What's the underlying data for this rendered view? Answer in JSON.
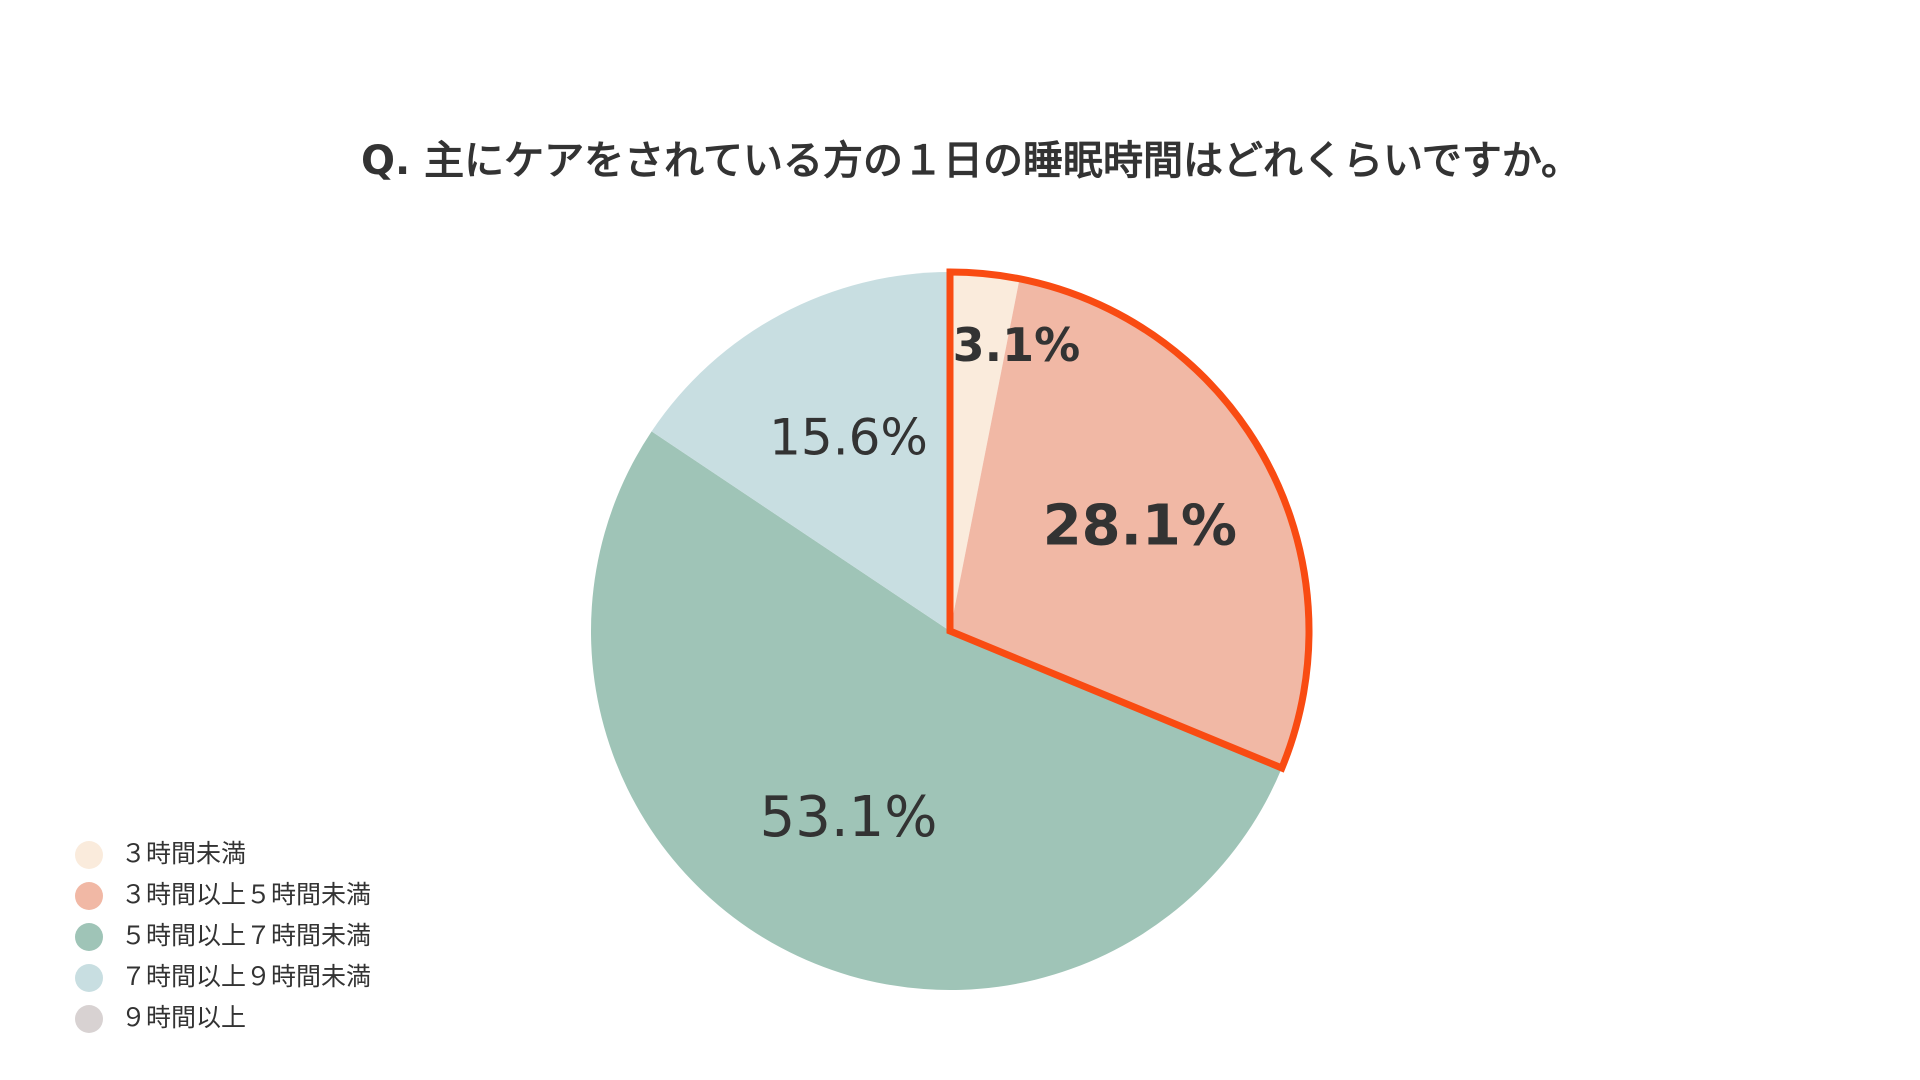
{
  "chart_data": {
    "type": "pie",
    "title": "Q. 主にケアをされている方の１日の睡眠時間はどれくらいですか。",
    "categories": [
      "３時間未満",
      "３時間以上５時間未満",
      "５時間以上７時間未満",
      "７時間以上９時間未満",
      "９時間以上"
    ],
    "values": [
      3.1,
      28.1,
      53.1,
      15.6,
      0
    ],
    "value_labels": [
      "3.1%",
      "28.1%",
      "53.1%",
      "15.6%",
      null
    ],
    "colors": [
      "#faebdc",
      "#f1b8a5",
      "#9fc4b7",
      "#c8dee1",
      "#d8d2d2"
    ],
    "highlight": [
      0,
      1
    ],
    "highlight_color": "#f94b12",
    "legend": "bottom-left"
  }
}
